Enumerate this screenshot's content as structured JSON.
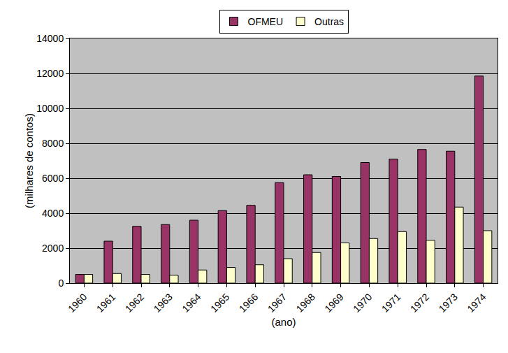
{
  "chart_data": {
    "type": "bar",
    "categories": [
      "1960",
      "1961",
      "1962",
      "1963",
      "1964",
      "1965",
      "1966",
      "1967",
      "1968",
      "1969",
      "1970",
      "1971",
      "1972",
      "1973",
      "1974"
    ],
    "series": [
      {
        "name": "OFMEU",
        "color": "#993366",
        "values": [
          500,
          2400,
          3250,
          3350,
          3600,
          4150,
          4450,
          5750,
          6200,
          6100,
          6900,
          7100,
          7650,
          7550,
          11850
        ]
      },
      {
        "name": "Outras",
        "color": "#ffffcc",
        "values": [
          500,
          550,
          500,
          450,
          750,
          900,
          1050,
          1400,
          1750,
          2300,
          2550,
          2950,
          2450,
          4350,
          3000
        ]
      }
    ],
    "x_label": "(ano)",
    "y_label": "(milhares de contos)",
    "ylim": [
      0,
      14000
    ],
    "yticks": [
      0,
      2000,
      4000,
      6000,
      8000,
      10000,
      12000,
      14000
    ],
    "grid": true,
    "legend": "top"
  }
}
